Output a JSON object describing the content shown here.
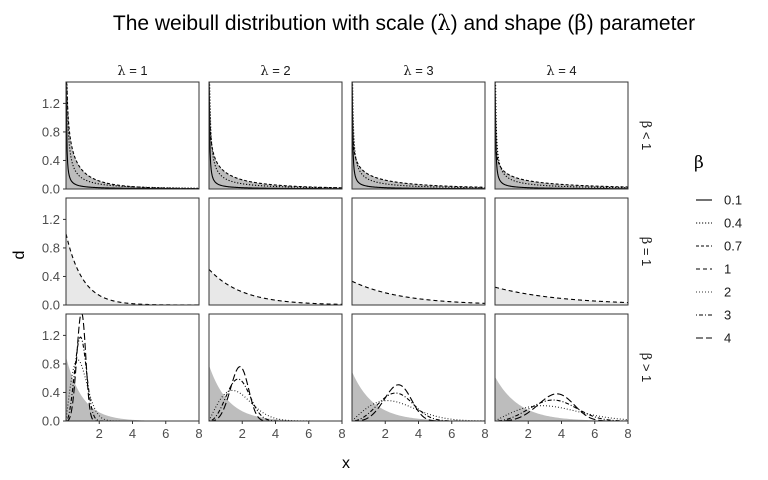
{
  "chart_data": {
    "type": "line",
    "title": "The weibull distribution with scale (λ) and shape (β) parameter",
    "xlabel": "x",
    "ylabel": "d",
    "xlim": [
      0,
      8
    ],
    "ylim": [
      0,
      1.5
    ],
    "x_ticks": [
      "2",
      "4",
      "6",
      "8"
    ],
    "y_ticks": [
      "0.0",
      "0.4",
      "0.8",
      "1.2"
    ],
    "column_strips": [
      {
        "symbol": "λ",
        "text": " = 1",
        "scale": 1
      },
      {
        "symbol": "λ",
        "text": " = 2",
        "scale": 2
      },
      {
        "symbol": "λ",
        "text": " = 3",
        "scale": 3
      },
      {
        "symbol": "λ",
        "text": " = 4",
        "scale": 4
      }
    ],
    "row_strips": [
      {
        "symbol": "β",
        "text": " < 1",
        "shapes": [
          0.1,
          0.4,
          0.7
        ]
      },
      {
        "symbol": "β",
        "text": " = 1",
        "shapes": [
          1
        ]
      },
      {
        "symbol": "β",
        "text": " > 1",
        "shapes": [
          2,
          3,
          4
        ]
      }
    ],
    "legend": {
      "title": "β",
      "position": "right",
      "entries": [
        {
          "label": "0.1",
          "shape": 0.1,
          "dash": "solid"
        },
        {
          "label": "0.4",
          "shape": 0.4,
          "dash": "dotted"
        },
        {
          "label": "0.7",
          "shape": 0.7,
          "dash": "short-dash"
        },
        {
          "label": "1",
          "shape": 1,
          "dash": "dashed"
        },
        {
          "label": "2",
          "shape": 2,
          "dash": "fine-dotted"
        },
        {
          "label": "3",
          "shape": 3,
          "dash": "dot-dash"
        },
        {
          "label": "4",
          "shape": 4,
          "dash": "long-dash"
        }
      ]
    },
    "background_fill": {
      "description": "grey shaded density areas behind curves",
      "color_light": "#e8e8e8",
      "color_dark": "#bdbdbd"
    },
    "colors": {
      "panel_border": "#333333",
      "line": "#000000",
      "tick_text": "#4d4d4d"
    }
  }
}
